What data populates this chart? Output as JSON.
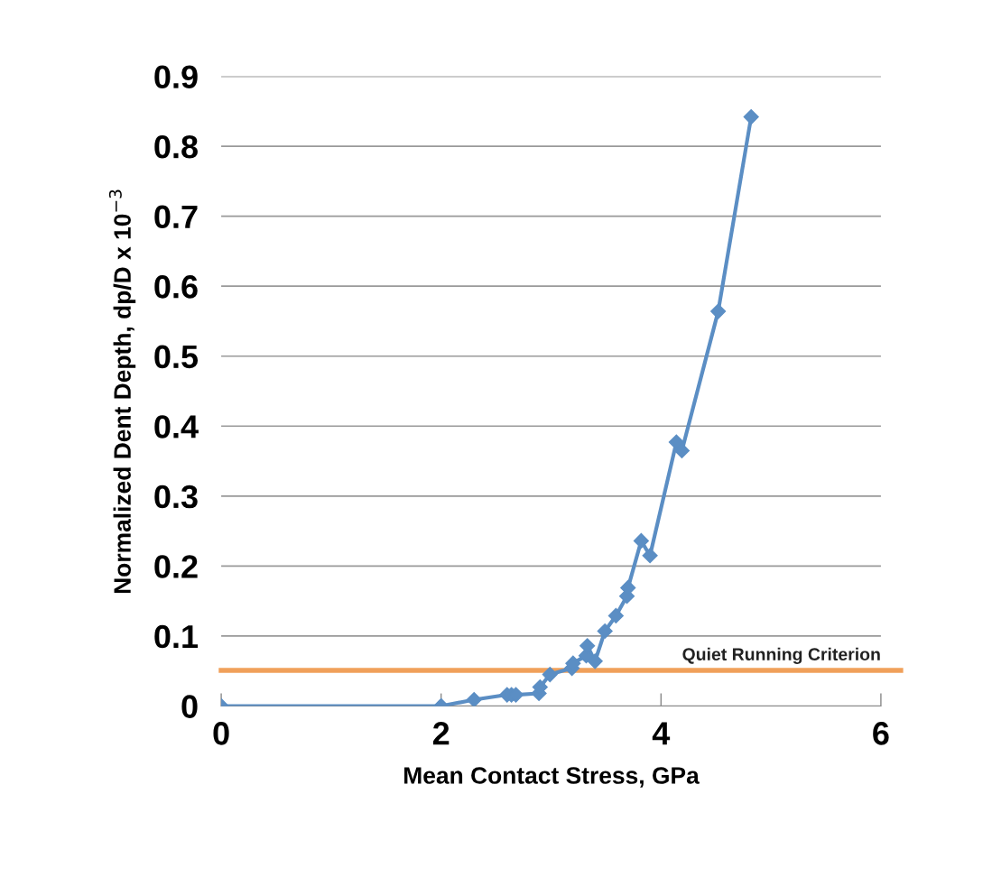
{
  "chart_data": {
    "type": "line",
    "xlabel": "Mean Contact Stress, GPa",
    "ylabel": "Normalized Dent Depth, dp/D x 10$^{−3}$",
    "series": [
      {
        "color": "#5b8ec4",
        "x": [
          0,
          2,
          2.3,
          2.6,
          2.64,
          2.68,
          2.89,
          2.9,
          2.99,
          3.19,
          3.2,
          3.32,
          3.33,
          3.4,
          3.49,
          3.59,
          3.69,
          3.7,
          3.82,
          3.9,
          4.14,
          4.19,
          4.52,
          4.82
        ],
        "values": [
          0,
          0,
          0.009,
          0.016,
          0.016,
          0.016,
          0.018,
          0.027,
          0.045,
          0.054,
          0.061,
          0.072,
          0.086,
          0.064,
          0.107,
          0.129,
          0.157,
          0.169,
          0.236,
          0.215,
          0.377,
          0.365,
          0.564,
          0.842
        ]
      }
    ],
    "marker": "diamond",
    "line_style": "solid",
    "xlim": [
      0,
      6
    ],
    "xticks": [
      0,
      2,
      4,
      6
    ],
    "ylim": [
      0,
      0.9
    ],
    "yticks": [
      0,
      0.1,
      0.2,
      0.3,
      0.4,
      0.5,
      0.6,
      0.7,
      0.8,
      0.9
    ],
    "grid": "y",
    "legend": false,
    "ref_lines": [
      {
        "axis": "y",
        "value": 0.051,
        "label": "Quiet Running Criterion",
        "color": "#f0a05a",
        "line_style": "solid"
      }
    ]
  }
}
